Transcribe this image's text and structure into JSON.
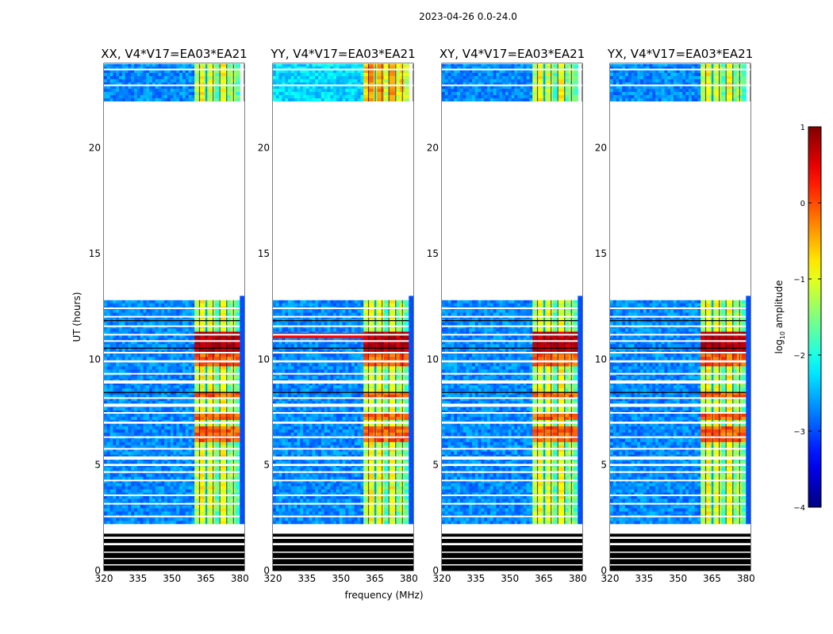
{
  "suptitle": "2023-04-26 0.0-24.0",
  "chart_data": {
    "type": "heatmap",
    "xlabel": "frequency (MHz)",
    "ylabel": "UT (hours)",
    "xlim": [
      320,
      382
    ],
    "ylim": [
      0,
      24
    ],
    "xticks": [
      320,
      335,
      350,
      365,
      380
    ],
    "yticks": [
      0,
      5,
      10,
      15,
      20
    ],
    "panels": [
      {
        "title": "XX, V4*V17=EA03*EA21",
        "pol": "XX"
      },
      {
        "title": "YY, V4*V17=EA03*EA21",
        "pol": "YY"
      },
      {
        "title": "XY, V4*V17=EA03*EA21",
        "pol": "XY"
      },
      {
        "title": "YX, V4*V17=EA03*EA21",
        "pol": "YX"
      }
    ],
    "data_gap_hours": [
      13.0,
      22.2
    ],
    "rfi_band_mhz": [
      360,
      380
    ],
    "colorbar": {
      "label": "log10 amplitude",
      "label_base": "log",
      "label_sub": "10",
      "label_rest": " amplitude",
      "range": [
        -4,
        1
      ],
      "ticks": [
        1,
        0,
        -1,
        -2,
        -3,
        -4
      ],
      "tick_labels": [
        "1",
        "0",
        "−1",
        "−2",
        "−3",
        "−4"
      ],
      "colormap": "jet"
    }
  }
}
